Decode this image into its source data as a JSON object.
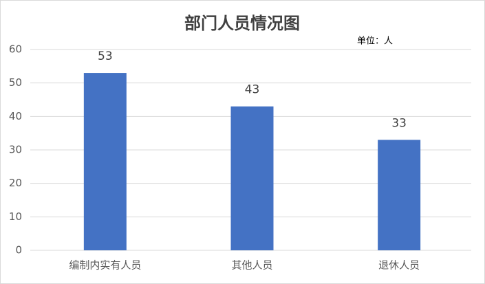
{
  "chart_data": {
    "type": "bar",
    "title": "部门人员情况图",
    "annotation": "单位：人",
    "categories": [
      "编制内实有人员",
      "其他人员",
      "退休人员"
    ],
    "values": [
      53,
      43,
      33
    ],
    "color": "#4472c4",
    "ylim": [
      0,
      60
    ],
    "yticks": [
      0,
      10,
      20,
      30,
      40,
      50,
      60
    ],
    "grid": true
  }
}
